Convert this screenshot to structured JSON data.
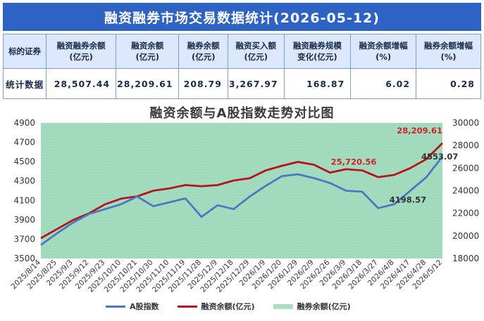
{
  "banner": {
    "title": "融资融券市场交易数据统计(2026-05-12)"
  },
  "stats_table": {
    "headers": [
      "标的证券",
      "融资融券余额\n(亿元)",
      "融资余额\n(亿元)",
      "融券余额\n(亿元)",
      "融资买入额\n(亿元)",
      "融资融券规模\n变化(亿元)",
      "融资余额增幅\n(%)",
      "融券余额增幅\n(%)"
    ],
    "row_label": "统计数据",
    "values": [
      "28,507.44",
      "28,209.61",
      "208.79",
      "3,267.97",
      "168.87",
      "6.02",
      "0.28"
    ]
  },
  "chart_data": {
    "type": "line",
    "title": "融资余额与A股指数走势对比图",
    "x_labels": [
      "2025/8/14",
      "2025/8/25",
      "2025/9/3",
      "2025/9/12",
      "2025/9/23",
      "2025/10/10",
      "2025/10/21",
      "2025/10/30",
      "2025/11/10",
      "2025/11/19",
      "2025/11/28",
      "2025/12/9",
      "2025/12/18",
      "2025/12/29",
      "2026/1/9",
      "2026/1/20",
      "2026/1/29",
      "2026/2/9",
      "2026/2/26",
      "2026/3/9",
      "2026/3/18",
      "2026/3/27",
      "2026/4/8",
      "2026/4/17",
      "2026/4/28",
      "2026/5/12"
    ],
    "y_left": {
      "min": 3500,
      "max": 4900,
      "ticks": [
        3500,
        3700,
        3900,
        4100,
        4300,
        4500,
        4700,
        4900
      ]
    },
    "y_right": {
      "min": 18000,
      "max": 30000,
      "ticks": [
        18000,
        20000,
        22000,
        24000,
        26000,
        28000,
        30000
      ]
    },
    "series": [
      {
        "name": "A股指数",
        "axis": "left",
        "color": "#4a78c2",
        "values": [
          3640,
          3760,
          3870,
          3960,
          4010,
          4060,
          4140,
          4040,
          4080,
          4120,
          3930,
          4050,
          4010,
          4140,
          4250,
          4350,
          4370,
          4330,
          4280,
          4200,
          4190,
          4020,
          4060,
          4200,
          4340,
          4553
        ]
      },
      {
        "name": "融资余额(亿元)",
        "axis": "right",
        "color": "#b8121c",
        "values": [
          19800,
          20600,
          21400,
          22000,
          22800,
          23300,
          23500,
          24000,
          24200,
          24500,
          24400,
          24500,
          24900,
          25100,
          25800,
          26200,
          26550,
          26300,
          25600,
          25900,
          25800,
          25200,
          25400,
          26000,
          26800,
          28209.61
        ]
      },
      {
        "name": "融券余额(亿元)",
        "axis": "right",
        "color": "#a8dfc3",
        "type": "area"
      }
    ],
    "annotations": [
      {
        "text": "28,209.61",
        "series": "融资余额(亿元)",
        "color": "#d2232a"
      },
      {
        "text": "25,720.56",
        "series": "融资余额(亿元)",
        "color": "#d2232a"
      },
      {
        "text": "4553.07",
        "series": "A股指数",
        "color": "#333333"
      },
      {
        "text": "4198.57",
        "series": "A股指数",
        "color": "#333333"
      }
    ],
    "legend": {
      "placement": "bottom"
    },
    "grid": false
  }
}
